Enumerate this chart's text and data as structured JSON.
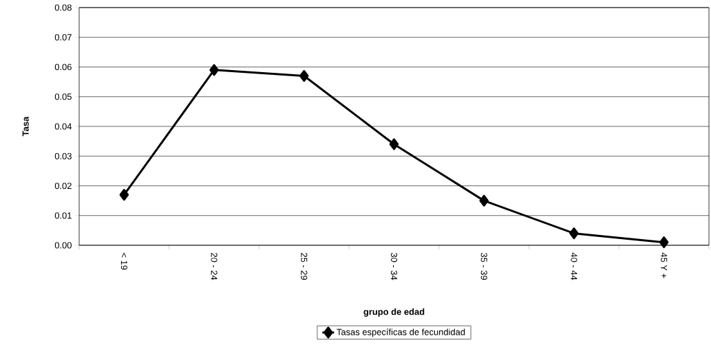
{
  "chart_data": {
    "type": "line",
    "xlabel": "grupo de edad",
    "ylabel": "Tasa",
    "categories": [
      "< 19",
      "20 - 24",
      "25 - 29",
      "30 - 34",
      "35 - 39",
      "40 - 44",
      "45 Y +"
    ],
    "series": [
      {
        "name": "Tasas específicas de fecundidad",
        "color": "#000000",
        "values": [
          0.017,
          0.059,
          0.057,
          0.034,
          0.015,
          0.004,
          0.001
        ]
      }
    ],
    "ylim": [
      0,
      0.08
    ],
    "yticks": [
      {
        "value": 0,
        "label": "0.00"
      },
      {
        "value": 0.01,
        "label": "0.01"
      },
      {
        "value": 0.02,
        "label": "0.02"
      },
      {
        "value": 0.03,
        "label": "0.03"
      },
      {
        "value": 0.04,
        "label": "0.04"
      },
      {
        "value": 0.05,
        "label": "0.05"
      },
      {
        "value": 0.06,
        "label": "0.06"
      },
      {
        "value": 0.07,
        "label": "0.07"
      },
      {
        "value": 0.08,
        "label": "0.08"
      }
    ],
    "grid": "y",
    "legend": "bottom",
    "marker": "diamond",
    "line_style": "solid"
  }
}
